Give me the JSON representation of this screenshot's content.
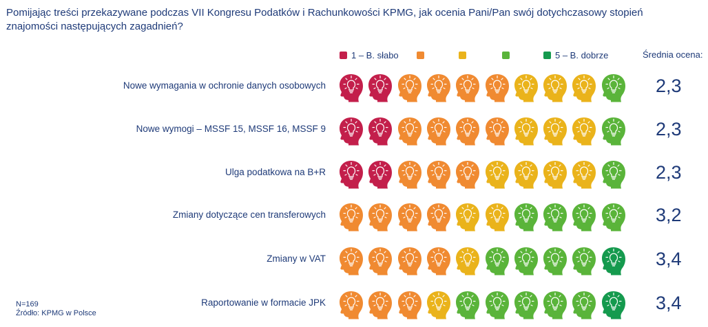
{
  "question": "Pomijając treści przekazywane podczas VII Kongresu Podatków i Rachunkowości KPMG, jak ocenia Pani/Pan swój dotychczasowy stopień znajomości następujących zagadnień?",
  "legend": [
    {
      "label": "1 – B. słabo",
      "color": "#c31f4b"
    },
    {
      "label": "",
      "color": "#f08a31"
    },
    {
      "label": "",
      "color": "#eab31b"
    },
    {
      "label": "",
      "color": "#5ab43a"
    },
    {
      "label": "5 – B. dobrze",
      "color": "#159a4e"
    }
  ],
  "average_header": "Średnia ocena:",
  "icon": "head-with-lightbulb-icon",
  "footnote": {
    "n": "N=169",
    "source": "Źródło: KPMG w Polsce"
  },
  "chart_data": {
    "type": "icon-array",
    "scale": [
      1,
      2,
      3,
      4,
      5
    ],
    "items": [
      {
        "label": "Nowe wymagania w ochronie danych osobowych",
        "icons": [
          1,
          1,
          2,
          2,
          2,
          2,
          3,
          3,
          3,
          4
        ],
        "average": "2,3"
      },
      {
        "label": "Nowe wymogi – MSSF 15, MSSF 16, MSSF 9",
        "icons": [
          1,
          1,
          2,
          2,
          2,
          2,
          3,
          3,
          3,
          4
        ],
        "average": "2,3"
      },
      {
        "label": "Ulga podatkowa na B+R",
        "icons": [
          1,
          1,
          2,
          2,
          2,
          3,
          3,
          3,
          3,
          4
        ],
        "average": "2,3"
      },
      {
        "label": "Zmiany dotyczące cen transferowych",
        "icons": [
          2,
          2,
          2,
          2,
          3,
          3,
          4,
          4,
          4,
          4
        ],
        "average": "3,2"
      },
      {
        "label": "Zmiany w VAT",
        "icons": [
          2,
          2,
          2,
          2,
          3,
          4,
          4,
          4,
          4,
          5
        ],
        "average": "3,4"
      },
      {
        "label": "Raportowanie w formacie JPK",
        "icons": [
          2,
          2,
          2,
          3,
          4,
          4,
          4,
          4,
          4,
          5
        ],
        "average": "3,4"
      }
    ]
  }
}
